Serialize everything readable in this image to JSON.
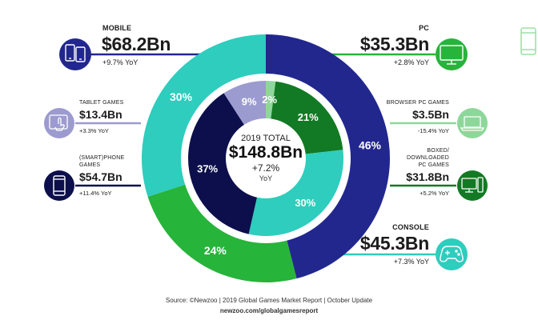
{
  "chart_data": {
    "type": "pie",
    "variant": "nested-donut",
    "title": "2019 TOTAL",
    "total": "$148.8Bn",
    "total_growth": "+7.2%",
    "total_growth_unit": "YoY",
    "outer": [
      {
        "name": "Mobile",
        "share": 46,
        "label": "46%",
        "color": "#22278e"
      },
      {
        "name": "PC",
        "share": 24,
        "label": "24%",
        "color": "#26b43a"
      },
      {
        "name": "Console",
        "share": 30,
        "label": "30%",
        "color": "#2ecdbd"
      }
    ],
    "inner": [
      {
        "name": "Browser PC Games",
        "share": 2,
        "label": "2%",
        "color": "#8ed79a"
      },
      {
        "name": "Boxed/Downloaded PC Games",
        "share": 21,
        "label": "21%",
        "color": "#127a24"
      },
      {
        "name": "Console",
        "share": 30,
        "label": "30%",
        "color": "#2ecdbd"
      },
      {
        "name": "(Smart)Phone Games",
        "share": 37,
        "label": "37%",
        "color": "#0c0f4c"
      },
      {
        "name": "Tablet Games",
        "share": 9,
        "label": "9%",
        "color": "#9c9bd0"
      }
    ],
    "segments": [
      {
        "id": "mobile",
        "category": "MOBILE",
        "value": "$68.2Bn",
        "yoy": "+9.7% YoY"
      },
      {
        "id": "tablet",
        "category": "TABLET GAMES",
        "value": "$13.4Bn",
        "yoy": "+3.3% YoY"
      },
      {
        "id": "phone",
        "category": "(SMART)PHONE\nGAMES",
        "value": "$54.7Bn",
        "yoy": "+11.4% YoY"
      },
      {
        "id": "pc",
        "category": "PC",
        "value": "$35.3Bn",
        "yoy": "+2.8% YoY"
      },
      {
        "id": "browser",
        "category": "BROWSER PC GAMES",
        "value": "$3.5Bn",
        "yoy": "-15.4% YoY"
      },
      {
        "id": "boxed",
        "category": "BOXED/\nDOWNLOADED\nPC GAMES",
        "value": "$31.8Bn",
        "yoy": "+5.2% YoY"
      },
      {
        "id": "console",
        "category": "CONSOLE",
        "value": "$45.3Bn",
        "yoy": "+7.3% YoY"
      }
    ]
  },
  "colors": {
    "mobile": "#22278e",
    "tablet": "#9c9bd0",
    "phone": "#0c0f4c",
    "pc": "#26b43a",
    "browser": "#8ed79a",
    "boxed": "#127a24",
    "console": "#2ecdbd"
  },
  "icons": {
    "mobile": "mobile-devices-icon",
    "tablet": "tablet-touch-icon",
    "phone": "smartphone-icon",
    "pc": "monitor-icon",
    "browser": "laptop-icon",
    "boxed": "desktop-computer-icon",
    "console": "gamepad-icon",
    "corner": "phone-outline-icon"
  },
  "footer": {
    "source": "Source: ©Newzoo | 2019 Global Games Market Report | October Update",
    "url": "newzoo.com/globalgamesreport"
  }
}
